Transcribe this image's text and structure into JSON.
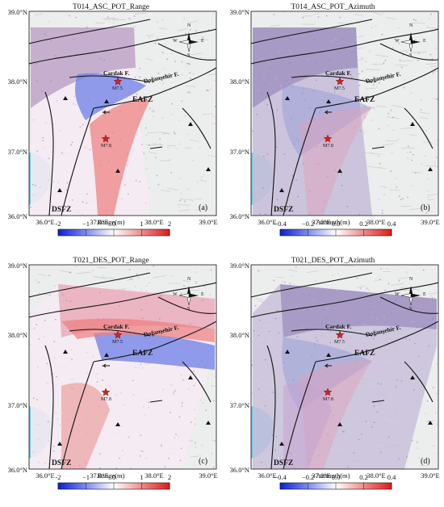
{
  "panels": [
    {
      "title": "T014_ASC_POT_Range",
      "label": "(a)",
      "colorbar_label": "Range(m)",
      "colorbar_ticks": [
        "-2",
        "−1",
        "0",
        "1",
        "2"
      ]
    },
    {
      "title": "T014_ASC_POT_Azimuth",
      "label": "(b)",
      "colorbar_label": "Azimuth(m)",
      "colorbar_ticks": [
        "−0.4",
        "−0.2",
        "0.0",
        "0.2",
        "0.4"
      ]
    },
    {
      "title": "T021_DES_POT_Range",
      "label": "(c)",
      "colorbar_label": "Range(m)",
      "colorbar_ticks": [
        "-2",
        "−1",
        "0",
        "1",
        "2"
      ]
    },
    {
      "title": "T021_DES_POT_Azimuth",
      "label": "(d)",
      "colorbar_label": "Azimuth(m)",
      "colorbar_ticks": [
        "−0.4",
        "−0.2",
        "0.0",
        "0.2",
        "0.4"
      ]
    }
  ],
  "axes": {
    "lat_ticks": [
      "39.0°N",
      "38.0°N",
      "37.0°N",
      "36.0°N"
    ],
    "lon_ticks": [
      "36.0°E",
      "37.0°E",
      "38.0°E",
      "39.0°E"
    ]
  },
  "map_labels": {
    "cardak": "Çardak F.",
    "dogansehir": "Doğanşehir F.",
    "eafz": "EAFZ",
    "dsfz": "DSFZ",
    "mw1": "M7.5",
    "mw2": "M7.8"
  },
  "compass": {
    "n": "N",
    "s": "S",
    "e": "E",
    "w": "W"
  },
  "colors": {
    "neg": "#0a1fd9",
    "pos": "#e01a1a",
    "sea": "#6ec9e6",
    "star": "#d0231f"
  }
}
